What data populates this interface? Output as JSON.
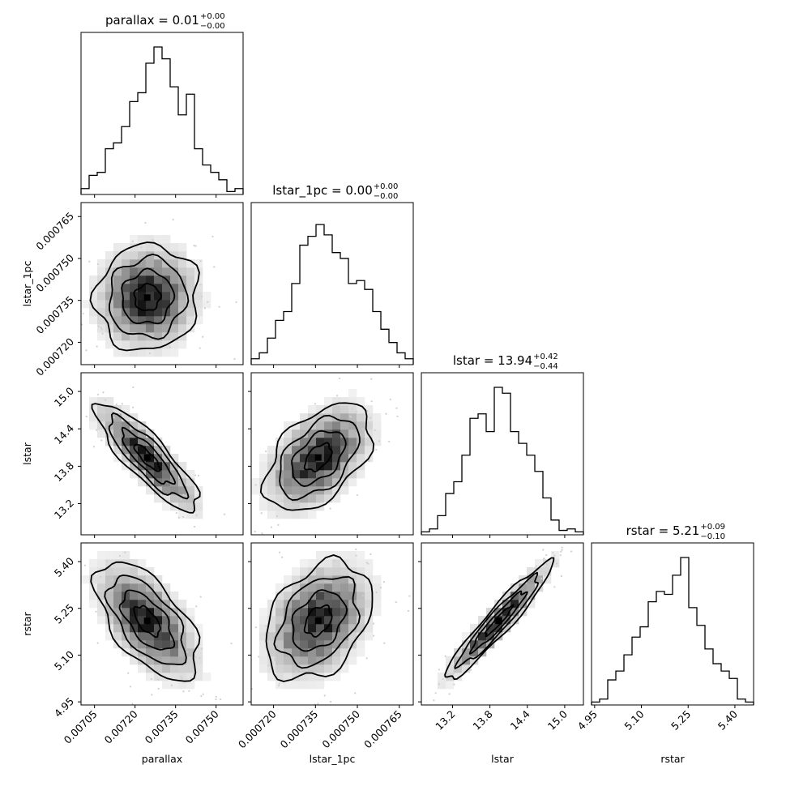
{
  "chart_data": {
    "type": "corner",
    "parameters": [
      "parallax",
      "lstar_1pc",
      "lstar",
      "rstar"
    ],
    "titles": [
      {
        "param": "parallax",
        "text": "parallax = 0.01",
        "plus": "+0.00",
        "minus": "−0.00"
      },
      {
        "param": "lstar_1pc",
        "text": "lstar_1pc = 0.00",
        "plus": "+0.00",
        "minus": "−0.00"
      },
      {
        "param": "lstar",
        "text": "lstar = 13.94",
        "plus": "+0.42",
        "minus": "−0.44"
      },
      {
        "param": "rstar",
        "text": "rstar = 5.21",
        "plus": "+0.09",
        "minus": "−0.10"
      }
    ],
    "axes": {
      "parallax": {
        "range": [
          0.007,
          0.0076
        ],
        "ticks": [
          0.00705,
          0.0072,
          0.00735,
          0.0075
        ],
        "tick_labels": [
          "0.00705",
          "0.00720",
          "0.00735",
          "0.00750"
        ]
      },
      "lstar_1pc": {
        "range": [
          0.000712,
          0.00077
        ],
        "ticks": [
          0.00072,
          0.000735,
          0.00075,
          0.000765
        ],
        "tick_labels": [
          "0.000720",
          "0.000735",
          "0.000750",
          "0.000765"
        ]
      },
      "lstar": {
        "range": [
          12.7,
          15.3
        ],
        "ticks": [
          13.2,
          13.8,
          14.4,
          15.0
        ],
        "tick_labels": [
          "13.2",
          "13.8",
          "14.4",
          "15.0"
        ]
      },
      "rstar": {
        "range": [
          4.94,
          5.46
        ],
        "ticks": [
          4.95,
          5.1,
          5.25,
          5.4
        ],
        "tick_labels": [
          "4.95",
          "5.10",
          "5.25",
          "5.40"
        ]
      }
    },
    "axis_labels": {
      "x": [
        "parallax",
        "lstar_1pc",
        "lstar",
        "rstar"
      ],
      "y": [
        "lstar_1pc",
        "lstar",
        "rstar"
      ]
    },
    "histograms": {
      "parallax": [
        0.04,
        0.13,
        0.15,
        0.31,
        0.35,
        0.46,
        0.63,
        0.69,
        0.89,
        1.0,
        0.92,
        0.73,
        0.54,
        0.68,
        0.31,
        0.2,
        0.15,
        0.1,
        0.02,
        0.04
      ],
      "lstar_1pc": [
        0.04,
        0.08,
        0.18,
        0.3,
        0.36,
        0.55,
        0.81,
        0.87,
        0.95,
        0.88,
        0.76,
        0.72,
        0.55,
        0.57,
        0.51,
        0.36,
        0.24,
        0.15,
        0.08,
        0.04
      ],
      "lstar": [
        0.02,
        0.04,
        0.13,
        0.28,
        0.36,
        0.54,
        0.79,
        0.82,
        0.7,
        1.0,
        0.96,
        0.7,
        0.62,
        0.54,
        0.43,
        0.25,
        0.1,
        0.03,
        0.04,
        0.02
      ],
      "rstar": [
        0.02,
        0.04,
        0.17,
        0.23,
        0.34,
        0.46,
        0.53,
        0.7,
        0.77,
        0.75,
        0.88,
        1.0,
        0.66,
        0.54,
        0.38,
        0.28,
        0.23,
        0.18,
        0.04,
        0.02
      ]
    },
    "correlations": {
      "lstar_1pc|parallax": 0.05,
      "lstar|parallax": -0.85,
      "lstar|lstar_1pc": 0.48,
      "rstar|parallax": -0.6,
      "rstar|lstar_1pc": 0.35,
      "rstar|lstar": 0.95
    },
    "medians": {
      "parallax": 0.007245,
      "lstar_1pc": 0.000736,
      "lstar": 13.94,
      "rstar": 5.21
    },
    "spreads": {
      "parallax": 9.5e-05,
      "lstar_1pc": 9.5e-06,
      "lstar": 0.43,
      "rstar": 0.095
    },
    "contour_levels": [
      0.5,
      1.0,
      1.5,
      2.0
    ]
  }
}
